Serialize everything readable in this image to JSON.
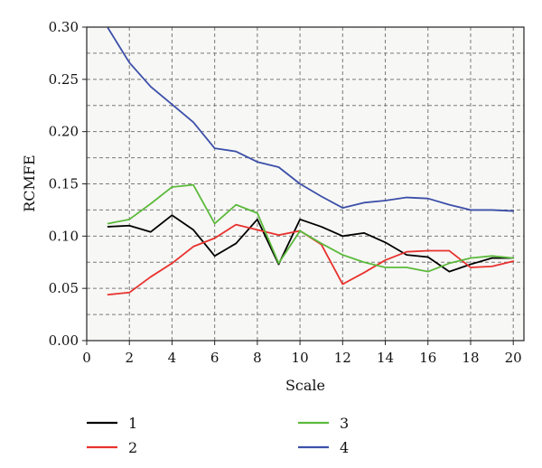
{
  "chart_data": {
    "type": "line",
    "xlabel": "Scale",
    "ylabel": "RCMFE",
    "xlim": [
      0,
      20.5
    ],
    "ylim": [
      0,
      0.3
    ],
    "x_ticks": [
      "0",
      "2",
      "4",
      "6",
      "8",
      "10",
      "12",
      "14",
      "16",
      "18",
      "20"
    ],
    "y_ticks": [
      "0.00",
      "0.05",
      "0.10",
      "0.15",
      "0.20",
      "0.25",
      "0.30"
    ],
    "grid": "dashed",
    "legend_position": "bottom",
    "x": [
      1,
      2,
      3,
      4,
      5,
      6,
      7,
      8,
      9,
      10,
      11,
      12,
      13,
      14,
      15,
      16,
      17,
      18,
      19,
      20
    ],
    "series": [
      {
        "name": "1",
        "color": "#000000",
        "values": [
          0.109,
          0.11,
          0.104,
          0.12,
          0.106,
          0.081,
          0.093,
          0.116,
          0.073,
          0.116,
          0.109,
          0.1,
          0.103,
          0.094,
          0.082,
          0.08,
          0.066,
          0.073,
          0.079,
          0.079
        ]
      },
      {
        "name": "2",
        "color": "#e8322d",
        "values": [
          0.044,
          0.046,
          0.061,
          0.074,
          0.09,
          0.098,
          0.111,
          0.106,
          0.101,
          0.105,
          0.092,
          0.054,
          0.065,
          0.077,
          0.085,
          0.086,
          0.086,
          0.07,
          0.071,
          0.076
        ]
      },
      {
        "name": "3",
        "color": "#5cba3c",
        "values": [
          0.112,
          0.116,
          0.131,
          0.147,
          0.149,
          0.112,
          0.13,
          0.122,
          0.074,
          0.105,
          0.093,
          0.082,
          0.075,
          0.07,
          0.07,
          0.066,
          0.074,
          0.079,
          0.081,
          0.079
        ]
      },
      {
        "name": "4",
        "color": "#3c4fa9",
        "values": [
          0.299,
          0.266,
          0.243,
          0.226,
          0.209,
          0.184,
          0.181,
          0.171,
          0.166,
          0.15,
          0.138,
          0.127,
          0.132,
          0.134,
          0.137,
          0.136,
          0.13,
          0.125,
          0.125,
          0.124
        ]
      }
    ]
  }
}
